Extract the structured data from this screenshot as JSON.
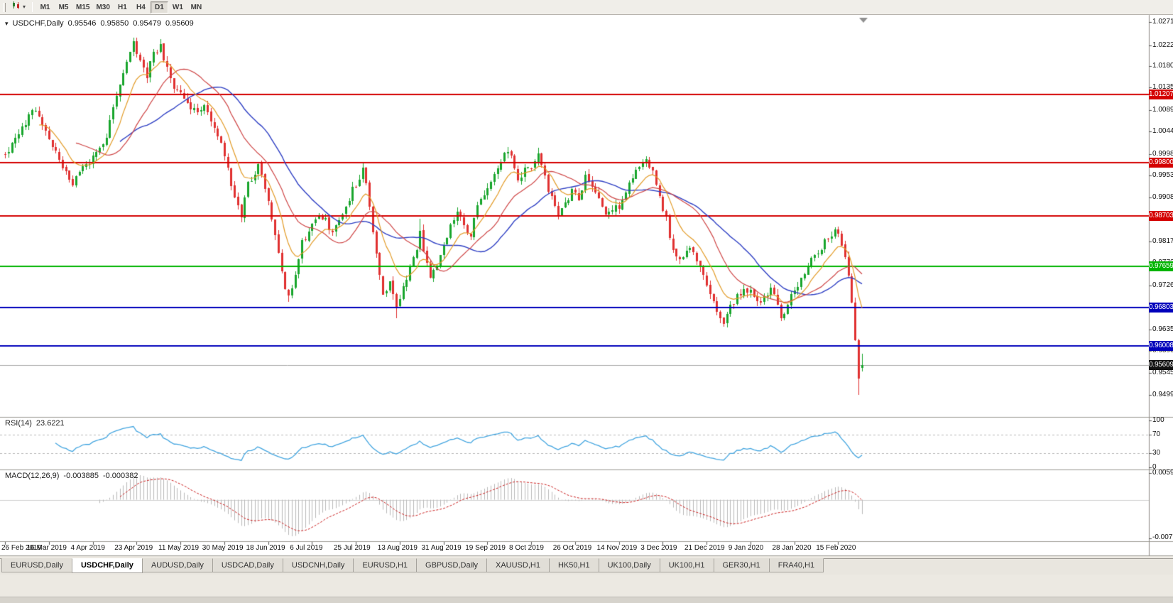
{
  "toolbar": {
    "timeframes": [
      "M1",
      "M5",
      "M15",
      "M30",
      "H1",
      "H4",
      "D1",
      "W1",
      "MN"
    ],
    "active_timeframe": "D1"
  },
  "chart": {
    "symbol": "USDCHF,Daily",
    "ohlc": {
      "open": "0.95546",
      "high": "0.95850",
      "low": "0.95479",
      "close": "0.95609"
    }
  },
  "price_axis": {
    "ticks": [
      "1.02710",
      "1.02220",
      "1.01800",
      "1.01350",
      "1.00890",
      "1.00440",
      "0.99980",
      "0.99530",
      "0.99080",
      "0.98620",
      "0.98170",
      "0.97720",
      "0.97260",
      "0.96810",
      "0.96350",
      "0.95900",
      "0.95450",
      "0.94990"
    ]
  },
  "current_price": {
    "label": "0.95609",
    "value": 0.95609
  },
  "rsi": {
    "label": "RSI(14)",
    "value": "23.6221",
    "axis_labels": [
      "100",
      "70",
      "30",
      "0"
    ],
    "guide_levels": [
      70,
      30
    ]
  },
  "macd": {
    "label": "MACD(12,26,9)",
    "macd_value": "-0.003885",
    "signal_value": "-0.000382",
    "axis_max": "0.005986",
    "axis_min": "-0.007737"
  },
  "date_axis": {
    "labels": [
      "26 Feb 2019",
      "16 Mar 2019",
      "4 Apr 2019",
      "23 Apr 2019",
      "11 May 2019",
      "30 May 2019",
      "18 Jun 2019",
      "6 Jul 2019",
      "25 Jul 2019",
      "13 Aug 2019",
      "31 Aug 2019",
      "19 Sep 2019",
      "8 Oct 2019",
      "26 Oct 2019",
      "14 Nov 2019",
      "3 Dec 2019",
      "21 Dec 2019",
      "9 Jan 2020",
      "28 Jan 2020",
      "15 Feb 2020"
    ]
  },
  "tabs": {
    "items": [
      "EURUSD,Daily",
      "USDCHF,Daily",
      "AUDUSD,Daily",
      "USDCAD,Daily",
      "USDCNH,Daily",
      "EURUSD,H1",
      "GBPUSD,Daily",
      "XAUUSD,H1",
      "HK50,H1",
      "UK100,Daily",
      "UK100,H1",
      "GER30,H1",
      "FRA40,H1"
    ],
    "active_index": 1
  },
  "chart_data": {
    "type": "candlestick",
    "symbol": "USDCHF",
    "timeframe": "Daily",
    "x_range": [
      "26 Feb 2019",
      "15 Feb 2020"
    ],
    "y_range": [
      0.9458,
      1.028
    ],
    "bars": 255,
    "up_color": "#18a52c",
    "down_color": "#e03030",
    "current_ohlc": {
      "open": 0.95546,
      "high": 0.9585,
      "low": 0.95479,
      "close": 0.95609
    },
    "close_anchors": [
      [
        0,
        0.9995
      ],
      [
        3,
        1.003
      ],
      [
        6,
        1.0062
      ],
      [
        8,
        1.0092
      ],
      [
        10,
        1.0072
      ],
      [
        13,
        1.0028
      ],
      [
        16,
        0.9988
      ],
      [
        20,
        0.9938
      ],
      [
        23,
        0.9966
      ],
      [
        26,
        0.9988
      ],
      [
        29,
        1.0012
      ],
      [
        32,
        1.0088
      ],
      [
        34,
        1.014
      ],
      [
        36,
        1.019
      ],
      [
        38,
        1.0226
      ],
      [
        40,
        1.0186
      ],
      [
        42,
        1.016
      ],
      [
        44,
        1.0206
      ],
      [
        46,
        1.022
      ],
      [
        48,
        1.0176
      ],
      [
        50,
        1.0132
      ],
      [
        52,
        1.0126
      ],
      [
        54,
        1.0106
      ],
      [
        56,
        1.0086
      ],
      [
        58,
        1.0096
      ],
      [
        60,
        1.009
      ],
      [
        62,
        1.005
      ],
      [
        64,
        1.0016
      ],
      [
        66,
        0.9962
      ],
      [
        68,
        0.9902
      ],
      [
        70,
        0.9872
      ],
      [
        72,
        0.9936
      ],
      [
        74,
        0.9962
      ],
      [
        75,
        0.9976
      ],
      [
        77,
        0.9932
      ],
      [
        79,
        0.9862
      ],
      [
        81,
        0.9792
      ],
      [
        83,
        0.9712
      ],
      [
        84,
        0.9698
      ],
      [
        86,
        0.9752
      ],
      [
        88,
        0.9812
      ],
      [
        91,
        0.9856
      ],
      [
        94,
        0.9869
      ],
      [
        97,
        0.9836
      ],
      [
        100,
        0.9872
      ],
      [
        103,
        0.9922
      ],
      [
        105,
        0.9946
      ],
      [
        106,
        0.9973
      ],
      [
        108,
        0.9892
      ],
      [
        110,
        0.9792
      ],
      [
        112,
        0.9702
      ],
      [
        114,
        0.9726
      ],
      [
        116,
        0.9676
      ],
      [
        118,
        0.9722
      ],
      [
        120,
        0.9763
      ],
      [
        122,
        0.9802
      ],
      [
        123,
        0.9842
      ],
      [
        124,
        0.9796
      ],
      [
        126,
        0.9746
      ],
      [
        128,
        0.9772
      ],
      [
        130,
        0.9816
      ],
      [
        132,
        0.9846
      ],
      [
        134,
        0.9872
      ],
      [
        136,
        0.9852
      ],
      [
        138,
        0.9832
      ],
      [
        140,
        0.9892
      ],
      [
        143,
        0.9932
      ],
      [
        146,
        0.9972
      ],
      [
        148,
        1.0006
      ],
      [
        150,
        0.9992
      ],
      [
        152,
        0.9942
      ],
      [
        154,
        0.9972
      ],
      [
        156,
        0.9971
      ],
      [
        158,
        0.9996
      ],
      [
        160,
        0.9946
      ],
      [
        162,
        0.9906
      ],
      [
        164,
        0.9869
      ],
      [
        166,
        0.9896
      ],
      [
        168,
        0.9922
      ],
      [
        170,
        0.9906
      ],
      [
        172,
        0.9952
      ],
      [
        174,
        0.9932
      ],
      [
        176,
        0.9906
      ],
      [
        178,
        0.9872
      ],
      [
        180,
        0.9882
      ],
      [
        182,
        0.9892
      ],
      [
        184,
        0.9922
      ],
      [
        186,
        0.9952
      ],
      [
        188,
        0.9972
      ],
      [
        190,
        0.9982
      ],
      [
        192,
        0.9956
      ],
      [
        194,
        0.9906
      ],
      [
        196,
        0.9862
      ],
      [
        198,
        0.9802
      ],
      [
        200,
        0.9782
      ],
      [
        202,
        0.9792
      ],
      [
        204,
        0.9802
      ],
      [
        206,
        0.9766
      ],
      [
        208,
        0.9732
      ],
      [
        210,
        0.9696
      ],
      [
        212,
        0.9662
      ],
      [
        213,
        0.9652
      ],
      [
        215,
        0.9682
      ],
      [
        217,
        0.9706
      ],
      [
        219,
        0.9719
      ],
      [
        221,
        0.9713
      ],
      [
        223,
        0.9686
      ],
      [
        225,
        0.9701
      ],
      [
        227,
        0.9723
      ],
      [
        229,
        0.9682
      ],
      [
        230,
        0.9663
      ],
      [
        232,
        0.9681
      ],
      [
        234,
        0.9721
      ],
      [
        236,
        0.9741
      ],
      [
        238,
        0.9763
      ],
      [
        240,
        0.9786
      ],
      [
        242,
        0.9806
      ],
      [
        244,
        0.9826
      ],
      [
        246,
        0.9838
      ],
      [
        247,
        0.9831
      ],
      [
        248,
        0.9816
      ],
      [
        249,
        0.9791
      ],
      [
        250,
        0.9746
      ],
      [
        251,
        0.9691
      ],
      [
        252,
        0.9612
      ],
      [
        253,
        0.9532
      ],
      [
        254,
        0.95609
      ]
    ],
    "moving_averages": [
      {
        "period": 10,
        "type": "ema",
        "color": "#e39b26"
      },
      {
        "period": 21,
        "type": "sma",
        "color": "#cf4545"
      },
      {
        "period": 34,
        "type": "sma",
        "color": "#2e3fc4"
      }
    ],
    "horizontal_levels": [
      {
        "label": "1.01207",
        "price": 1.01207,
        "color": "#d40000"
      },
      {
        "label": "0.99800",
        "price": 0.998,
        "color": "#d40000"
      },
      {
        "label": "0.98703",
        "price": 0.98703,
        "color": "#d40000"
      },
      {
        "label": "0.97659",
        "price": 0.97659,
        "color": "#00b400"
      },
      {
        "label": "0.96803",
        "price": 0.96803,
        "color": "#0000bb"
      },
      {
        "label": "0.96008",
        "price": 0.96008,
        "color": "#0000bb"
      }
    ],
    "indicators": [
      {
        "name": "RSI",
        "period": 14,
        "current": 23.6221,
        "scale": [
          0,
          100
        ],
        "guides": [
          30,
          70
        ]
      },
      {
        "name": "MACD",
        "fast": 12,
        "slow": 26,
        "signal": 9,
        "macd_current": -0.003885,
        "signal_current": -0.000382,
        "scale_max": 0.005986,
        "scale_min": -0.007737
      }
    ]
  }
}
